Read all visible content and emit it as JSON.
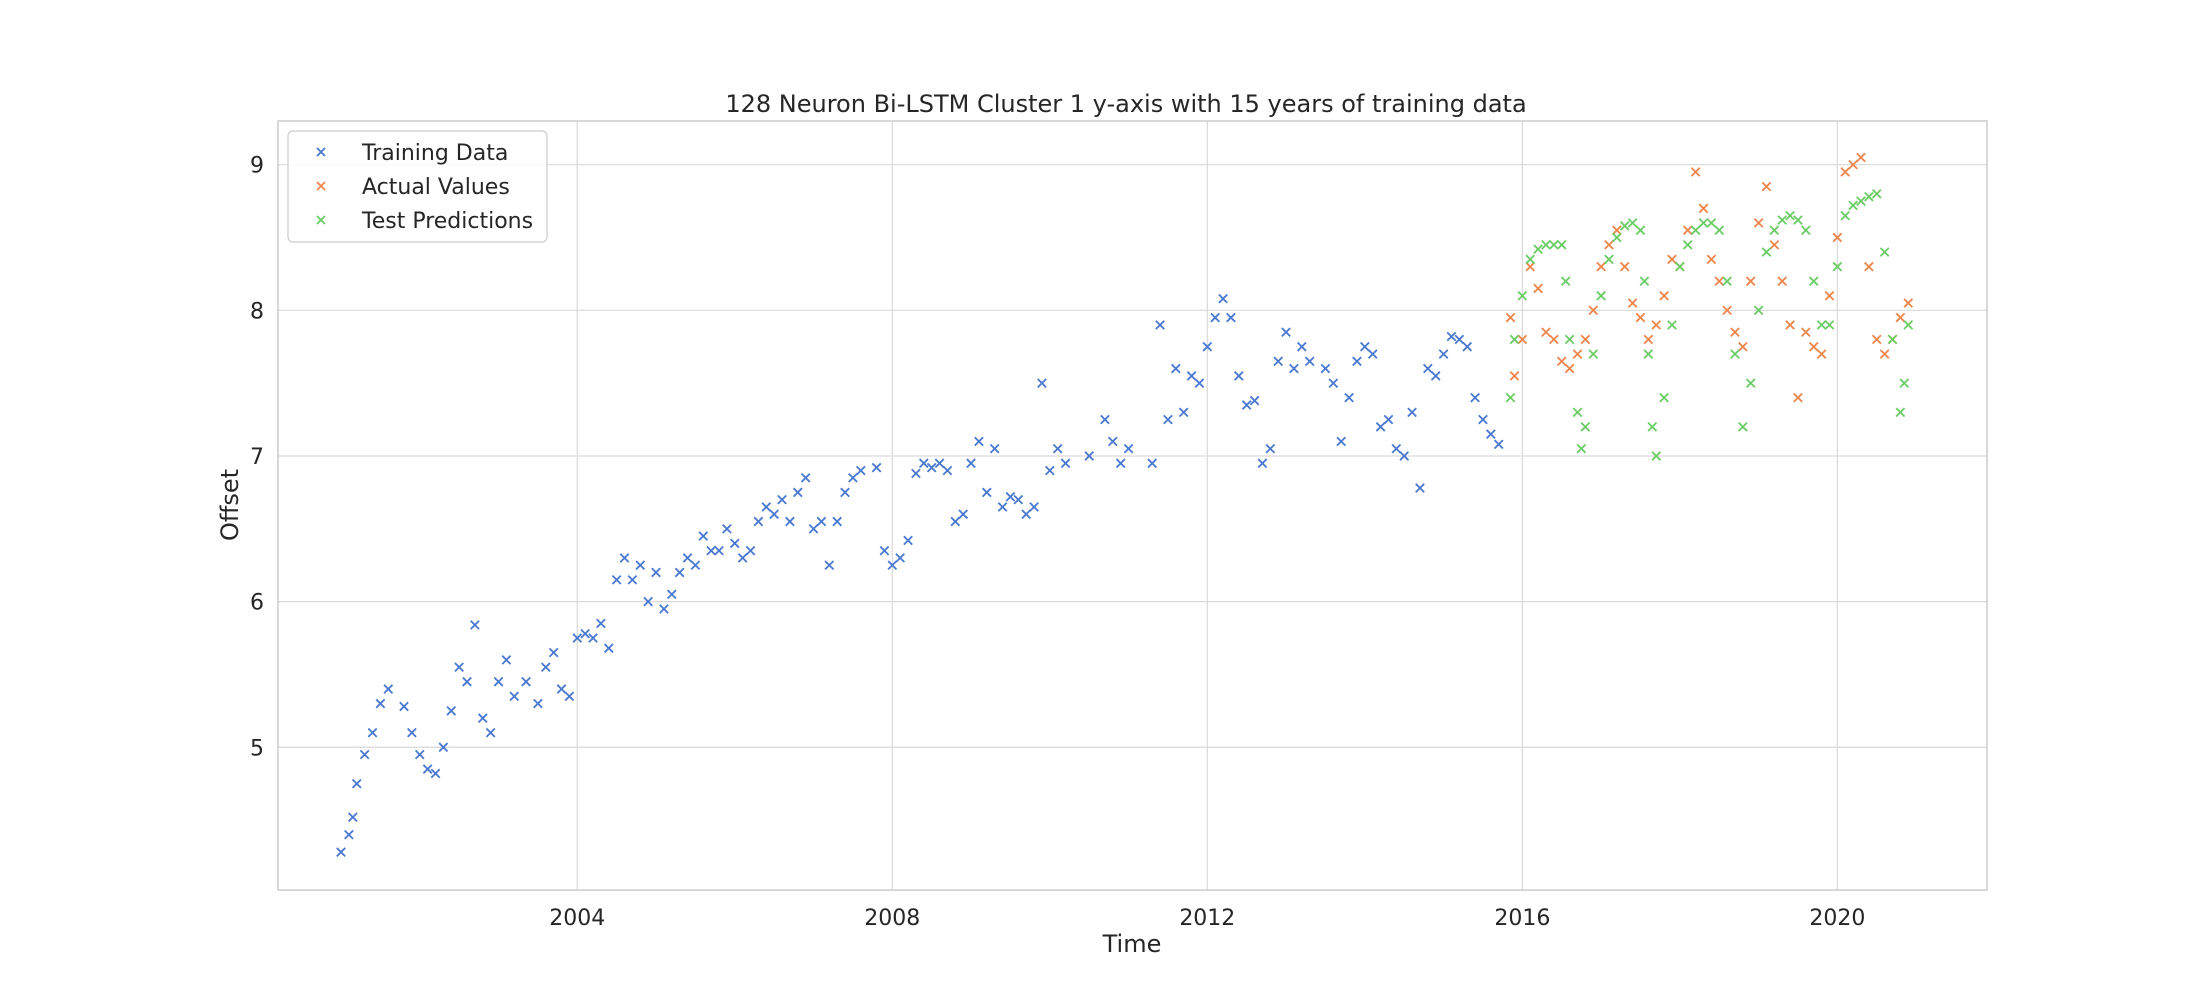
{
  "chart_data": {
    "type": "scatter",
    "title": "128 Neuron Bi-LSTM Cluster 1 y-axis with 15 years of training data",
    "xlabel": "Time",
    "ylabel": "Offset",
    "xlim": [
      2000.2,
      2021.9
    ],
    "ylim": [
      4.02,
      9.3
    ],
    "x_ticks": [
      2004,
      2008,
      2012,
      2016,
      2020
    ],
    "y_ticks": [
      5,
      6,
      7,
      8,
      9
    ],
    "grid": true,
    "legend_position": "top-left",
    "marker": "x",
    "series": [
      {
        "name": "Training Data",
        "color": "#4878d0",
        "points": [
          [
            2001.0,
            4.28
          ],
          [
            2001.1,
            4.4
          ],
          [
            2001.15,
            4.52
          ],
          [
            2001.2,
            4.75
          ],
          [
            2001.3,
            4.95
          ],
          [
            2001.4,
            5.1
          ],
          [
            2001.5,
            5.3
          ],
          [
            2001.6,
            5.4
          ],
          [
            2001.8,
            5.28
          ],
          [
            2001.9,
            5.1
          ],
          [
            2002.0,
            4.95
          ],
          [
            2002.1,
            4.85
          ],
          [
            2002.2,
            4.82
          ],
          [
            2002.3,
            5.0
          ],
          [
            2002.4,
            5.25
          ],
          [
            2002.5,
            5.55
          ],
          [
            2002.6,
            5.45
          ],
          [
            2002.7,
            5.84
          ],
          [
            2002.8,
            5.2
          ],
          [
            2002.9,
            5.1
          ],
          [
            2003.0,
            5.45
          ],
          [
            2003.1,
            5.6
          ],
          [
            2003.2,
            5.35
          ],
          [
            2003.35,
            5.45
          ],
          [
            2003.5,
            5.3
          ],
          [
            2003.6,
            5.55
          ],
          [
            2003.7,
            5.65
          ],
          [
            2003.8,
            5.4
          ],
          [
            2003.9,
            5.35
          ],
          [
            2004.0,
            5.75
          ],
          [
            2004.1,
            5.78
          ],
          [
            2004.2,
            5.75
          ],
          [
            2004.3,
            5.85
          ],
          [
            2004.4,
            5.68
          ],
          [
            2004.5,
            6.15
          ],
          [
            2004.6,
            6.3
          ],
          [
            2004.7,
            6.15
          ],
          [
            2004.8,
            6.25
          ],
          [
            2004.9,
            6.0
          ],
          [
            2005.0,
            6.2
          ],
          [
            2005.1,
            5.95
          ],
          [
            2005.2,
            6.05
          ],
          [
            2005.3,
            6.2
          ],
          [
            2005.4,
            6.3
          ],
          [
            2005.5,
            6.25
          ],
          [
            2005.6,
            6.45
          ],
          [
            2005.7,
            6.35
          ],
          [
            2005.8,
            6.35
          ],
          [
            2005.9,
            6.5
          ],
          [
            2006.0,
            6.4
          ],
          [
            2006.1,
            6.3
          ],
          [
            2006.2,
            6.35
          ],
          [
            2006.3,
            6.55
          ],
          [
            2006.4,
            6.65
          ],
          [
            2006.5,
            6.6
          ],
          [
            2006.6,
            6.7
          ],
          [
            2006.7,
            6.55
          ],
          [
            2006.8,
            6.75
          ],
          [
            2006.9,
            6.85
          ],
          [
            2007.0,
            6.5
          ],
          [
            2007.1,
            6.55
          ],
          [
            2007.2,
            6.25
          ],
          [
            2007.3,
            6.55
          ],
          [
            2007.4,
            6.75
          ],
          [
            2007.5,
            6.85
          ],
          [
            2007.6,
            6.9
          ],
          [
            2007.8,
            6.92
          ],
          [
            2007.9,
            6.35
          ],
          [
            2008.0,
            6.25
          ],
          [
            2008.1,
            6.3
          ],
          [
            2008.2,
            6.42
          ],
          [
            2008.3,
            6.88
          ],
          [
            2008.4,
            6.95
          ],
          [
            2008.5,
            6.92
          ],
          [
            2008.6,
            6.95
          ],
          [
            2008.7,
            6.9
          ],
          [
            2008.8,
            6.55
          ],
          [
            2008.9,
            6.6
          ],
          [
            2009.0,
            6.95
          ],
          [
            2009.1,
            7.1
          ],
          [
            2009.2,
            6.75
          ],
          [
            2009.3,
            7.05
          ],
          [
            2009.4,
            6.65
          ],
          [
            2009.5,
            6.72
          ],
          [
            2009.6,
            6.7
          ],
          [
            2009.7,
            6.6
          ],
          [
            2009.8,
            6.65
          ],
          [
            2009.9,
            7.5
          ],
          [
            2010.0,
            6.9
          ],
          [
            2010.1,
            7.05
          ],
          [
            2010.2,
            6.95
          ],
          [
            2010.5,
            7.0
          ],
          [
            2010.7,
            7.25
          ],
          [
            2010.8,
            7.1
          ],
          [
            2010.9,
            6.95
          ],
          [
            2011.0,
            7.05
          ],
          [
            2011.3,
            6.95
          ],
          [
            2011.4,
            7.9
          ],
          [
            2011.5,
            7.25
          ],
          [
            2011.6,
            7.6
          ],
          [
            2011.7,
            7.3
          ],
          [
            2011.8,
            7.55
          ],
          [
            2011.9,
            7.5
          ],
          [
            2012.0,
            7.75
          ],
          [
            2012.1,
            7.95
          ],
          [
            2012.2,
            8.08
          ],
          [
            2012.3,
            7.95
          ],
          [
            2012.4,
            7.55
          ],
          [
            2012.5,
            7.35
          ],
          [
            2012.6,
            7.38
          ],
          [
            2012.7,
            6.95
          ],
          [
            2012.8,
            7.05
          ],
          [
            2012.9,
            7.65
          ],
          [
            2013.0,
            7.85
          ],
          [
            2013.1,
            7.6
          ],
          [
            2013.2,
            7.75
          ],
          [
            2013.3,
            7.65
          ],
          [
            2013.5,
            7.6
          ],
          [
            2013.6,
            7.5
          ],
          [
            2013.7,
            7.1
          ],
          [
            2013.8,
            7.4
          ],
          [
            2013.9,
            7.65
          ],
          [
            2014.0,
            7.75
          ],
          [
            2014.1,
            7.7
          ],
          [
            2014.2,
            7.2
          ],
          [
            2014.3,
            7.25
          ],
          [
            2014.4,
            7.05
          ],
          [
            2014.5,
            7.0
          ],
          [
            2014.6,
            7.3
          ],
          [
            2014.7,
            6.78
          ],
          [
            2014.8,
            7.6
          ],
          [
            2014.9,
            7.55
          ],
          [
            2015.0,
            7.7
          ],
          [
            2015.1,
            7.82
          ],
          [
            2015.2,
            7.8
          ],
          [
            2015.3,
            7.75
          ],
          [
            2015.4,
            7.4
          ],
          [
            2015.5,
            7.25
          ],
          [
            2015.6,
            7.15
          ],
          [
            2015.7,
            7.08
          ]
        ]
      },
      {
        "name": "Actual Values",
        "color": "#ee854a",
        "points": [
          [
            2015.85,
            7.95
          ],
          [
            2015.9,
            7.55
          ],
          [
            2016.0,
            7.8
          ],
          [
            2016.1,
            8.3
          ],
          [
            2016.2,
            8.15
          ],
          [
            2016.3,
            7.85
          ],
          [
            2016.4,
            7.8
          ],
          [
            2016.5,
            7.65
          ],
          [
            2016.6,
            7.6
          ],
          [
            2016.7,
            7.7
          ],
          [
            2016.8,
            7.8
          ],
          [
            2016.9,
            8.0
          ],
          [
            2017.0,
            8.3
          ],
          [
            2017.1,
            8.45
          ],
          [
            2017.2,
            8.55
          ],
          [
            2017.3,
            8.3
          ],
          [
            2017.4,
            8.05
          ],
          [
            2017.5,
            7.95
          ],
          [
            2017.6,
            7.8
          ],
          [
            2017.7,
            7.9
          ],
          [
            2017.8,
            8.1
          ],
          [
            2017.9,
            8.35
          ],
          [
            2018.0,
            8.3
          ],
          [
            2018.1,
            8.55
          ],
          [
            2018.2,
            8.95
          ],
          [
            2018.3,
            8.7
          ],
          [
            2018.4,
            8.35
          ],
          [
            2018.5,
            8.2
          ],
          [
            2018.6,
            8.0
          ],
          [
            2018.7,
            7.85
          ],
          [
            2018.8,
            7.75
          ],
          [
            2018.9,
            8.2
          ],
          [
            2019.0,
            8.6
          ],
          [
            2019.1,
            8.85
          ],
          [
            2019.2,
            8.45
          ],
          [
            2019.3,
            8.2
          ],
          [
            2019.4,
            7.9
          ],
          [
            2019.5,
            7.4
          ],
          [
            2019.6,
            7.85
          ],
          [
            2019.7,
            7.75
          ],
          [
            2019.8,
            7.7
          ],
          [
            2019.9,
            8.1
          ],
          [
            2020.0,
            8.5
          ],
          [
            2020.1,
            8.95
          ],
          [
            2020.2,
            9.0
          ],
          [
            2020.3,
            9.05
          ],
          [
            2020.4,
            8.3
          ],
          [
            2020.5,
            7.8
          ],
          [
            2020.6,
            7.7
          ],
          [
            2020.7,
            7.8
          ],
          [
            2020.8,
            7.95
          ],
          [
            2020.9,
            8.05
          ]
        ]
      },
      {
        "name": "Test Predictions",
        "color": "#6acc64",
        "points": [
          [
            2015.85,
            7.4
          ],
          [
            2015.9,
            7.8
          ],
          [
            2016.0,
            8.1
          ],
          [
            2016.1,
            8.35
          ],
          [
            2016.2,
            8.42
          ],
          [
            2016.3,
            8.45
          ],
          [
            2016.4,
            8.45
          ],
          [
            2016.5,
            8.45
          ],
          [
            2016.55,
            8.2
          ],
          [
            2016.6,
            7.8
          ],
          [
            2016.7,
            7.3
          ],
          [
            2016.75,
            7.05
          ],
          [
            2016.8,
            7.2
          ],
          [
            2016.9,
            7.7
          ],
          [
            2017.0,
            8.1
          ],
          [
            2017.1,
            8.35
          ],
          [
            2017.2,
            8.5
          ],
          [
            2017.3,
            8.58
          ],
          [
            2017.4,
            8.6
          ],
          [
            2017.5,
            8.55
          ],
          [
            2017.55,
            8.2
          ],
          [
            2017.6,
            7.7
          ],
          [
            2017.65,
            7.2
          ],
          [
            2017.7,
            7.0
          ],
          [
            2017.8,
            7.4
          ],
          [
            2017.9,
            7.9
          ],
          [
            2018.0,
            8.3
          ],
          [
            2018.1,
            8.45
          ],
          [
            2018.2,
            8.55
          ],
          [
            2018.3,
            8.6
          ],
          [
            2018.4,
            8.6
          ],
          [
            2018.5,
            8.55
          ],
          [
            2018.6,
            8.2
          ],
          [
            2018.7,
            7.7
          ],
          [
            2018.8,
            7.2
          ],
          [
            2018.9,
            7.5
          ],
          [
            2019.0,
            8.0
          ],
          [
            2019.1,
            8.4
          ],
          [
            2019.2,
            8.55
          ],
          [
            2019.3,
            8.62
          ],
          [
            2019.4,
            8.65
          ],
          [
            2019.5,
            8.62
          ],
          [
            2019.6,
            8.55
          ],
          [
            2019.7,
            8.2
          ],
          [
            2019.8,
            7.9
          ],
          [
            2019.9,
            7.9
          ],
          [
            2020.0,
            8.3
          ],
          [
            2020.1,
            8.65
          ],
          [
            2020.2,
            8.72
          ],
          [
            2020.3,
            8.75
          ],
          [
            2020.4,
            8.78
          ],
          [
            2020.5,
            8.8
          ],
          [
            2020.6,
            8.4
          ],
          [
            2020.7,
            7.8
          ],
          [
            2020.8,
            7.3
          ],
          [
            2020.85,
            7.5
          ],
          [
            2020.9,
            7.9
          ]
        ]
      }
    ]
  }
}
